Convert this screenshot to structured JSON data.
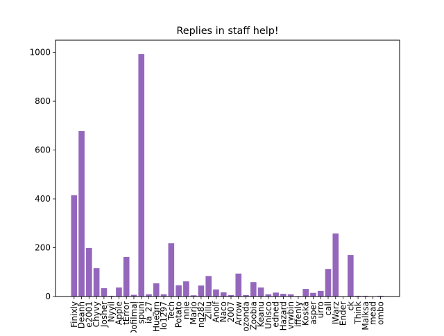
{
  "chart_data": {
    "type": "bar",
    "title": "Replies in staff help!",
    "xlabel": "",
    "ylabel": "",
    "ylim": [
      0,
      1050
    ],
    "yticks": [
      0,
      200,
      400,
      600,
      800,
      1000
    ],
    "grid": false,
    "legend": "none",
    "bar_color": "#9467bd",
    "categories": [
      "Finixly",
      "Deanh",
      "e2001",
      "Chyvy",
      "Josher",
      "Nyyil",
      "Apple",
      "tError",
      "Dofilmal",
      "spuni",
      "ia_27",
      "Huegrn",
      "lo1297",
      "Tech",
      "Potato",
      "nnie",
      "Marjo",
      "ng282",
      "Zillu",
      "Anolf",
      "Naco",
      "2007",
      "Arrow",
      "ozonda",
      "Zoobia",
      "Keanu",
      "Unisco",
      "edned",
      "Hazard",
      "vrwbin",
      "iffenly",
      "Koská",
      "asper",
      "urro",
      "call",
      "lWarz",
      "Ender",
      "ck",
      "Think",
      "Malksa",
      "mead",
      "ombo"
    ],
    "values": [
      415,
      678,
      199,
      116,
      34,
      3,
      37,
      162,
      7,
      993,
      9,
      54,
      9,
      218,
      46,
      62,
      5,
      45,
      84,
      29,
      17,
      6,
      94,
      6,
      59,
      37,
      9,
      16,
      11,
      9,
      2,
      31,
      15,
      23,
      113,
      258,
      0,
      170,
      3,
      3,
      1,
      3
    ]
  }
}
